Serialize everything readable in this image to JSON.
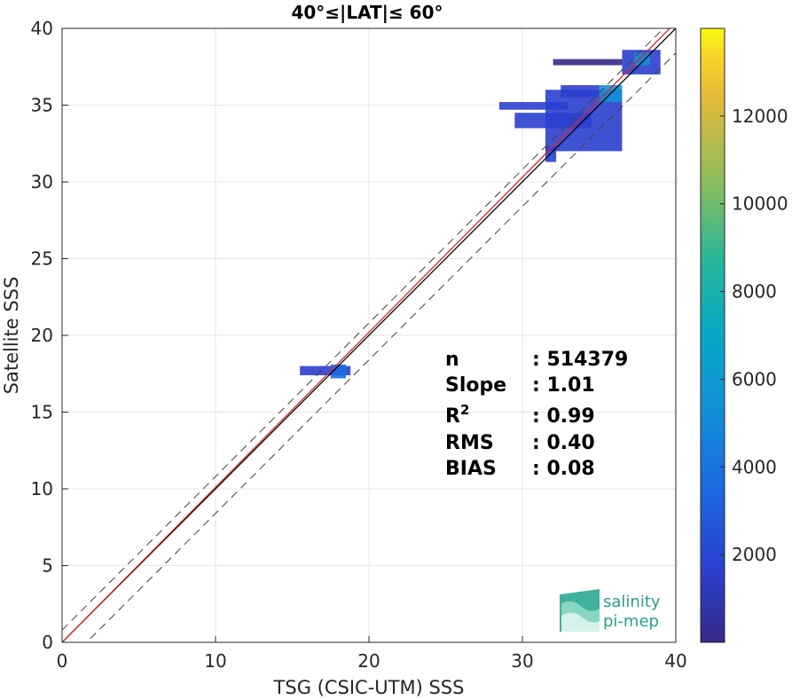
{
  "chart_data": {
    "type": "heatmap",
    "title": "40°≤|LAT|≤ 60°",
    "xlabel": "TSG (CSIC-UTM) SSS",
    "ylabel": "Satellite SSS",
    "xlim": [
      0,
      40
    ],
    "ylim": [
      0,
      40
    ],
    "xticks": [
      0,
      10,
      20,
      30,
      40
    ],
    "yticks": [
      0,
      5,
      10,
      15,
      20,
      25,
      30,
      35,
      40
    ],
    "grid": true,
    "lines": [
      {
        "name": "identity",
        "slope": 1.0,
        "intercept": 0.0,
        "color": "#000000",
        "style": "solid"
      },
      {
        "name": "fit",
        "slope": 1.01,
        "intercept": 0.0,
        "color": "#d62728",
        "style": "solid"
      },
      {
        "name": "upper",
        "slope": 1.0,
        "intercept": 0.8,
        "color": "#404040",
        "style": "dashed"
      },
      {
        "name": "lower",
        "slope": 1.0,
        "intercept": -1.6,
        "color": "#404040",
        "style": "dashed"
      }
    ],
    "density_blobs": [
      {
        "x0": 15.5,
        "x1": 18.8,
        "y0": 17.4,
        "y1": 18.0,
        "level": 0.1
      },
      {
        "x0": 17.5,
        "x1": 18.5,
        "y0": 17.2,
        "y1": 18.1,
        "level": 0.18
      },
      {
        "x0": 28.5,
        "x1": 33.0,
        "y0": 34.7,
        "y1": 35.2,
        "level": 0.08
      },
      {
        "x0": 29.5,
        "x1": 34.5,
        "y0": 33.5,
        "y1": 34.5,
        "level": 0.1
      },
      {
        "x0": 31.5,
        "x1": 36.5,
        "y0": 32.0,
        "y1": 36.0,
        "level": 0.12
      },
      {
        "x0": 35.0,
        "x1": 36.5,
        "y0": 35.2,
        "y1": 36.3,
        "level": 0.3
      },
      {
        "x0": 32.5,
        "x1": 35.0,
        "y0": 35.5,
        "y1": 36.3,
        "level": 0.08
      },
      {
        "x0": 32.0,
        "x1": 36.5,
        "y0": 37.6,
        "y1": 38.0,
        "level": 0.05
      },
      {
        "x0": 36.5,
        "x1": 39.0,
        "y0": 37.0,
        "y1": 38.6,
        "level": 0.15
      },
      {
        "x0": 37.3,
        "x1": 38.3,
        "y0": 37.6,
        "y1": 38.4,
        "level": 0.35
      },
      {
        "x0": 31.5,
        "x1": 32.2,
        "y0": 31.3,
        "y1": 32.3,
        "level": 0.1
      }
    ],
    "colorbar": {
      "min": 0,
      "max": 14000,
      "ticks": [
        2000,
        4000,
        6000,
        8000,
        10000,
        12000
      ],
      "colormap": "parula"
    },
    "stats": [
      {
        "label": "n",
        "value": ": 514379"
      },
      {
        "label": "Slope",
        "value": ": 1.01"
      },
      {
        "label": "R",
        "sup": "2",
        "value": ": 0.99"
      },
      {
        "label": "RMS",
        "value": ": 0.40"
      },
      {
        "label": "BIAS",
        "value": ": 0.08"
      }
    ]
  },
  "logo": {
    "line1": "salinity",
    "line2": "pi-mep"
  }
}
